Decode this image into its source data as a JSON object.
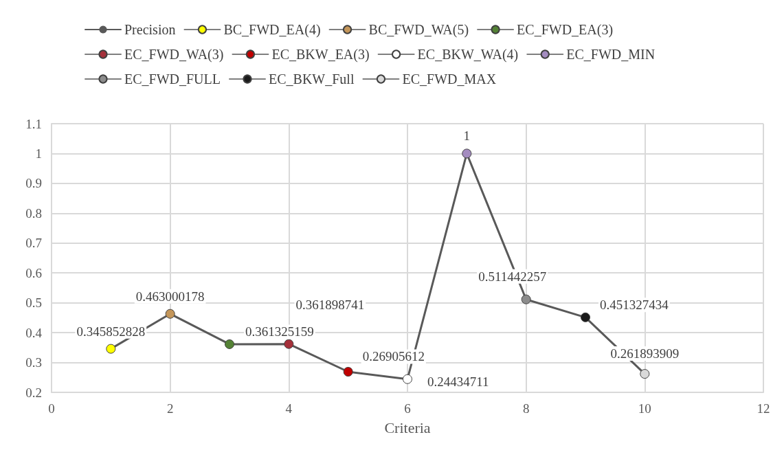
{
  "chart_data": {
    "type": "line",
    "xlabel": "Criteria",
    "xlim": [
      0,
      12
    ],
    "xticks": [
      0,
      2,
      4,
      6,
      8,
      10,
      12
    ],
    "ylim": [
      0.2,
      1.1
    ],
    "yticks": [
      0.2,
      0.3,
      0.4,
      0.5,
      0.6,
      0.7,
      0.8,
      0.9,
      1,
      1.1
    ],
    "grid": true,
    "legend": "top",
    "marker": "circle",
    "line_style": "solid",
    "series": [
      {
        "name": "Precision",
        "color": "#595959",
        "x": [
          1,
          2,
          3,
          4,
          5,
          6,
          7,
          8,
          9,
          10
        ],
        "values": [
          0.345852828,
          0.463000178,
          0.361325159,
          0.361898741,
          0.26905612,
          0.24434711,
          1,
          0.511442257,
          0.451327434,
          0.261893909
        ]
      },
      {
        "name": "BC_FWD_EA(4)",
        "color": "#ffff00",
        "x": [
          1
        ],
        "values": [
          0.345852828
        ],
        "value_labels": [
          "0.345852828"
        ]
      },
      {
        "name": "BC_FWD_WA(5)",
        "color": "#c4965a",
        "x": [
          2
        ],
        "values": [
          0.463000178
        ],
        "value_labels": [
          "0.463000178"
        ]
      },
      {
        "name": "EC_FWD_EA(3)",
        "color": "#548235",
        "x": [
          3
        ],
        "values": [
          0.361325159
        ],
        "value_labels": [
          "0.361325159"
        ]
      },
      {
        "name": "EC_FWD_WA(3)",
        "color": "#a5303a",
        "x": [
          4
        ],
        "values": [
          0.361898741
        ],
        "value_labels": [
          "0.361898741"
        ]
      },
      {
        "name": "EC_BKW_EA(3)",
        "color": "#c00000",
        "x": [
          5
        ],
        "values": [
          0.26905612
        ],
        "value_labels": [
          "0.26905612"
        ]
      },
      {
        "name": "EC_BKW_WA(4)",
        "color": "#ffffff",
        "x": [
          6
        ],
        "values": [
          0.24434711
        ],
        "value_labels": [
          "0.24434711"
        ]
      },
      {
        "name": "EC_FWD_MIN",
        "color": "#a48cc0",
        "x": [
          7
        ],
        "values": [
          1
        ],
        "value_labels": [
          "1"
        ]
      },
      {
        "name": "EC_FWD_FULL",
        "color": "#8c8c8c",
        "x": [
          8
        ],
        "values": [
          0.511442257
        ],
        "value_labels": [
          "0.511442257"
        ]
      },
      {
        "name": "EC_BKW_Full",
        "color": "#1a1a1a",
        "x": [
          9
        ],
        "values": [
          0.451327434
        ],
        "value_labels": [
          "0.451327434"
        ]
      },
      {
        "name": "EC_FWD_MAX",
        "color": "#d9d9d9",
        "x": [
          10
        ],
        "values": [
          0.261893909
        ],
        "value_labels": [
          "0.261893909"
        ]
      }
    ]
  }
}
